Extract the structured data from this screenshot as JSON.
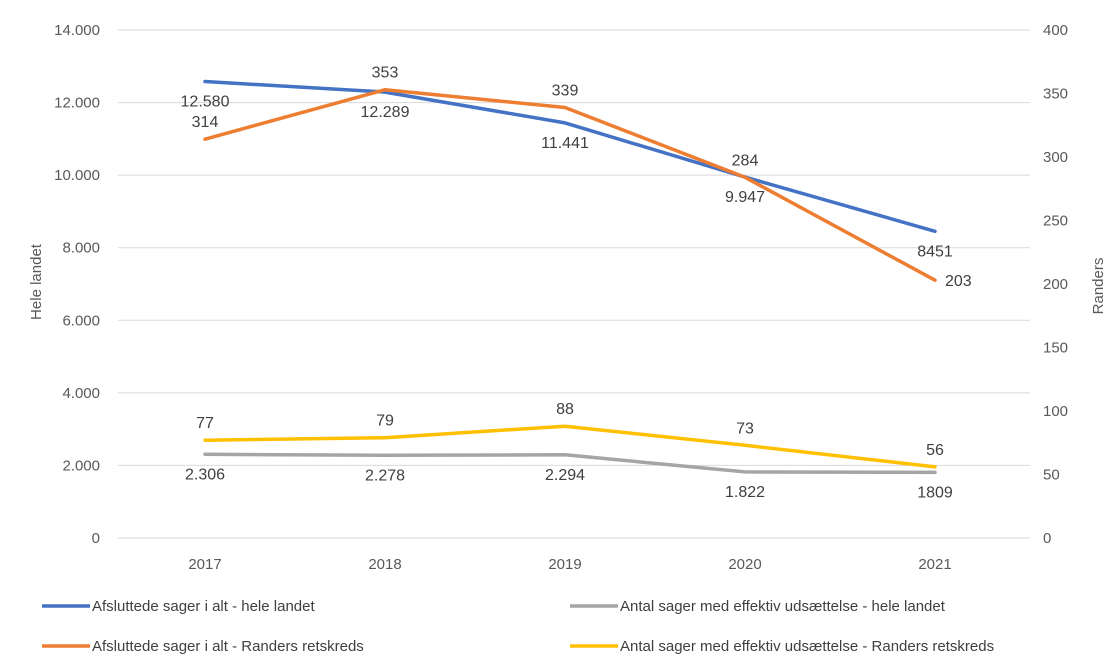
{
  "chart_data": {
    "type": "line",
    "categories": [
      "2017",
      "2018",
      "2019",
      "2020",
      "2021"
    ],
    "y_left": {
      "label": "Hele landet",
      "ylim": [
        0,
        14000
      ],
      "ticks": [
        0,
        2000,
        4000,
        6000,
        8000,
        10000,
        12000,
        14000
      ],
      "tick_labels": [
        "0",
        "2.000",
        "4.000",
        "6.000",
        "8.000",
        "10.000",
        "12.000",
        "14.000"
      ]
    },
    "y_right": {
      "label": "Randers",
      "ylim": [
        0,
        400
      ],
      "ticks": [
        0,
        50,
        100,
        150,
        200,
        250,
        300,
        350,
        400
      ],
      "tick_labels": [
        "0",
        "50",
        "100",
        "150",
        "200",
        "250",
        "300",
        "350",
        "400"
      ]
    },
    "grid": true,
    "legend_position": "bottom",
    "series": [
      {
        "name": "Afsluttede sager i alt - hele landet",
        "axis": "left",
        "color": "#4472C4",
        "values": [
          12580,
          12289,
          11441,
          9947,
          8451
        ],
        "labels": [
          "12.580",
          "12.289",
          "11.441",
          "9.947",
          "8451"
        ],
        "label_placement": [
          "below",
          "below",
          "below",
          "below",
          "below"
        ]
      },
      {
        "name": "Afsluttede sager i alt - Randers retskreds",
        "axis": "right",
        "color": "#ED7D31",
        "values": [
          314,
          353,
          339,
          284,
          203
        ],
        "labels": [
          "314",
          "353",
          "339",
          "284",
          "203"
        ],
        "label_placement": [
          "above",
          "above",
          "above",
          "above",
          "right"
        ]
      },
      {
        "name": "Antal sager med effektiv udsættelse - hele landet",
        "axis": "left",
        "color": "#A5A5A5",
        "values": [
          2306,
          2278,
          2294,
          1822,
          1809
        ],
        "labels": [
          "2.306",
          "2.278",
          "2.294",
          "1.822",
          "1809"
        ],
        "label_placement": [
          "below",
          "below",
          "below",
          "below",
          "below"
        ]
      },
      {
        "name": "Antal sager med effektiv udsættelse - Randers retskreds",
        "axis": "right",
        "color": "#FFC000",
        "values": [
          77,
          79,
          88,
          73,
          56
        ],
        "labels": [
          "77",
          "79",
          "88",
          "73",
          "56"
        ],
        "label_placement": [
          "above",
          "above",
          "above",
          "above",
          "above"
        ]
      }
    ],
    "legend_order": [
      0,
      2,
      1,
      3
    ]
  }
}
